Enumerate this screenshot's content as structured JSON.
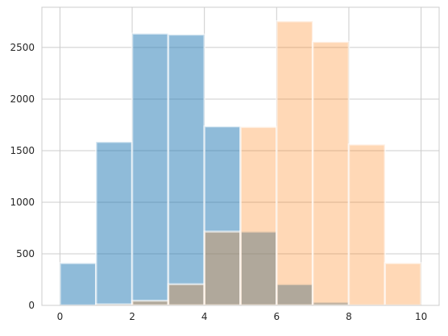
{
  "chart_data": {
    "type": "bar",
    "title": "",
    "xlabel": "",
    "ylabel": "",
    "xlim": [
      -0.5,
      10.5
    ],
    "ylim": [
      0,
      2890
    ],
    "grid": true,
    "x_ticks": [
      0,
      2,
      4,
      6,
      8,
      10
    ],
    "y_ticks": [
      0,
      500,
      1000,
      1500,
      2000,
      2500
    ],
    "series": [
      {
        "color": "#1f77b4",
        "opacity": 0.5,
        "bins": [
          {
            "x0": 0,
            "x1": 1,
            "value": 410
          },
          {
            "x0": 1,
            "x1": 2,
            "value": 1585
          },
          {
            "x0": 2,
            "x1": 3,
            "value": 2635
          },
          {
            "x0": 3,
            "x1": 4,
            "value": 2625
          },
          {
            "x0": 4,
            "x1": 5,
            "value": 1735
          },
          {
            "x0": 5,
            "x1": 6,
            "value": 715
          },
          {
            "x0": 6,
            "x1": 7,
            "value": 205
          },
          {
            "x0": 7,
            "x1": 8,
            "value": 30
          },
          {
            "x0": 8,
            "x1": 9,
            "value": 3
          },
          {
            "x0": 9,
            "x1": 10,
            "value": 0
          }
        ]
      },
      {
        "color": "#ff7f0e",
        "opacity": 0.3,
        "bins": [
          {
            "x0": 0,
            "x1": 1,
            "value": 0
          },
          {
            "x0": 1,
            "x1": 2,
            "value": 10
          },
          {
            "x0": 2,
            "x1": 3,
            "value": 45
          },
          {
            "x0": 3,
            "x1": 4,
            "value": 205
          },
          {
            "x0": 4,
            "x1": 5,
            "value": 715
          },
          {
            "x0": 5,
            "x1": 6,
            "value": 1730
          },
          {
            "x0": 6,
            "x1": 7,
            "value": 2755
          },
          {
            "x0": 7,
            "x1": 8,
            "value": 2555
          },
          {
            "x0": 8,
            "x1": 9,
            "value": 1560
          },
          {
            "x0": 9,
            "x1": 10,
            "value": 410
          }
        ]
      }
    ]
  }
}
